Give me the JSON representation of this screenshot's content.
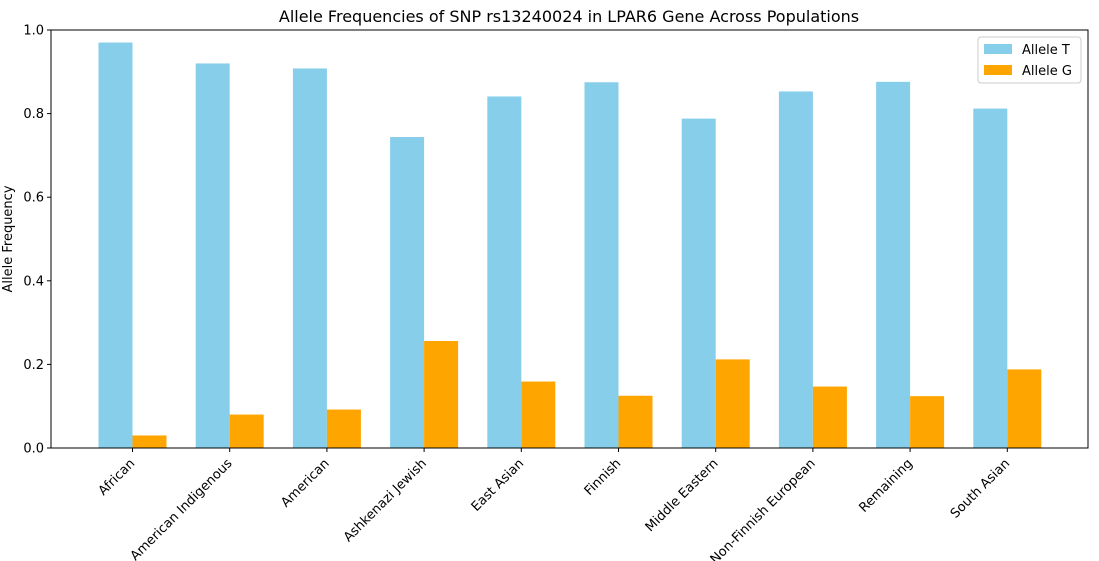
{
  "chart_data": {
    "type": "bar",
    "title": "Allele Frequencies of SNP rs13240024 in LPAR6 Gene Across Populations",
    "xlabel": "",
    "ylabel": "Allele Frequency",
    "ylim": [
      0,
      1.0
    ],
    "yticks": [
      "0.0",
      "0.2",
      "0.4",
      "0.6",
      "0.8",
      "1.0"
    ],
    "grid": false,
    "legend_position": "top-right",
    "categories": [
      "African",
      "American Indigenous",
      "American",
      "Ashkenazi Jewish",
      "East Asian",
      "Finnish",
      "Middle Eastern",
      "Non-Finnish European",
      "Remaining",
      "South Asian"
    ],
    "series": [
      {
        "name": "Allele T",
        "color": "#87CEEB",
        "values": [
          0.97,
          0.92,
          0.908,
          0.744,
          0.841,
          0.875,
          0.788,
          0.853,
          0.876,
          0.812
        ]
      },
      {
        "name": "Allele G",
        "color": "#FFA500",
        "values": [
          0.03,
          0.08,
          0.092,
          0.256,
          0.159,
          0.125,
          0.212,
          0.147,
          0.124,
          0.188
        ]
      }
    ]
  }
}
